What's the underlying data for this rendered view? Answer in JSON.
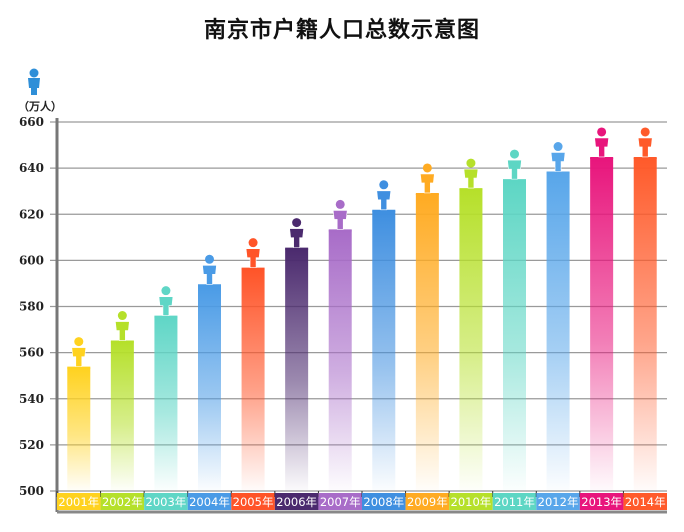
{
  "chart_data": {
    "type": "bar",
    "title": "南京市户籍人口总数示意图",
    "ylabel": "（万人）",
    "ylim": [
      500,
      660
    ],
    "yticks": [
      "500",
      "520",
      "540",
      "560",
      "580",
      "600",
      "620",
      "640",
      "660"
    ],
    "grid": true,
    "categories": [
      "2001年",
      "2002年",
      "2003年",
      "2004年",
      "2005年",
      "2006年",
      "2007年",
      "2008年",
      "2009年",
      "2010年",
      "2011年",
      "2012年",
      "2013年",
      "2014年"
    ],
    "values": [
      553.5,
      564.8,
      575.6,
      589.2,
      596.4,
      605.1,
      613.0,
      621.5,
      628.8,
      630.9,
      634.8,
      638.1,
      644.4,
      644.4
    ],
    "colors": [
      "#ffd21f",
      "#b5e02a",
      "#5fd6c6",
      "#4a9be6",
      "#ff5428",
      "#4b2a6e",
      "#a86cc8",
      "#3f8fe0",
      "#ffab22",
      "#b6e02a",
      "#5dd6c4",
      "#58a6ea",
      "#e8157c",
      "#ff5a2a"
    ],
    "icon": "person-icon"
  }
}
